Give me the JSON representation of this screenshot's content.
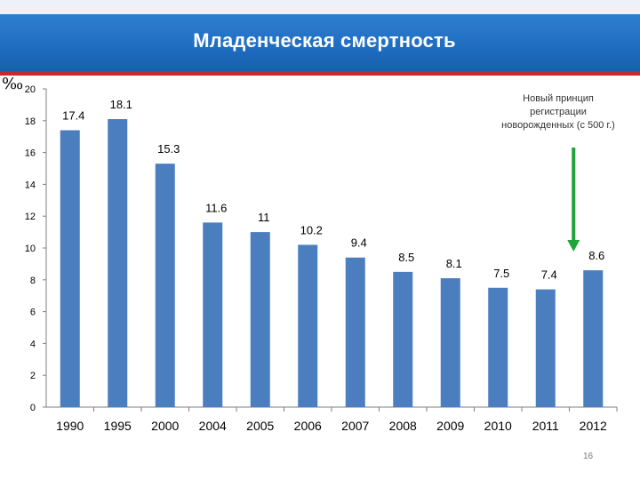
{
  "slide": {
    "title": "Младенческая смертность",
    "unit_label": "‰",
    "page_number": "16"
  },
  "annotation": {
    "lines": [
      "Новый принцип",
      "регистрации",
      "новорожденных (с 500 г.)"
    ],
    "arrow_color": "#1fa33a"
  },
  "chart_data": {
    "type": "bar",
    "title": "Младенческая смертность",
    "xlabel": "",
    "ylabel": "‰",
    "categories": [
      "1990",
      "1995",
      "2000",
      "2004",
      "2005",
      "2006",
      "2007",
      "2008",
      "2009",
      "2010",
      "2011",
      "2012"
    ],
    "values": [
      17.4,
      18.1,
      15.3,
      11.6,
      11,
      10.2,
      9.4,
      8.5,
      8.1,
      7.5,
      7.4,
      8.6
    ],
    "ylim": [
      0,
      20
    ],
    "yticks": [
      "0",
      "2",
      "4",
      "6",
      "8",
      "10",
      "12",
      "14",
      "16",
      "18",
      "20"
    ],
    "grid": false,
    "bar_color": "#4a7ebf"
  }
}
